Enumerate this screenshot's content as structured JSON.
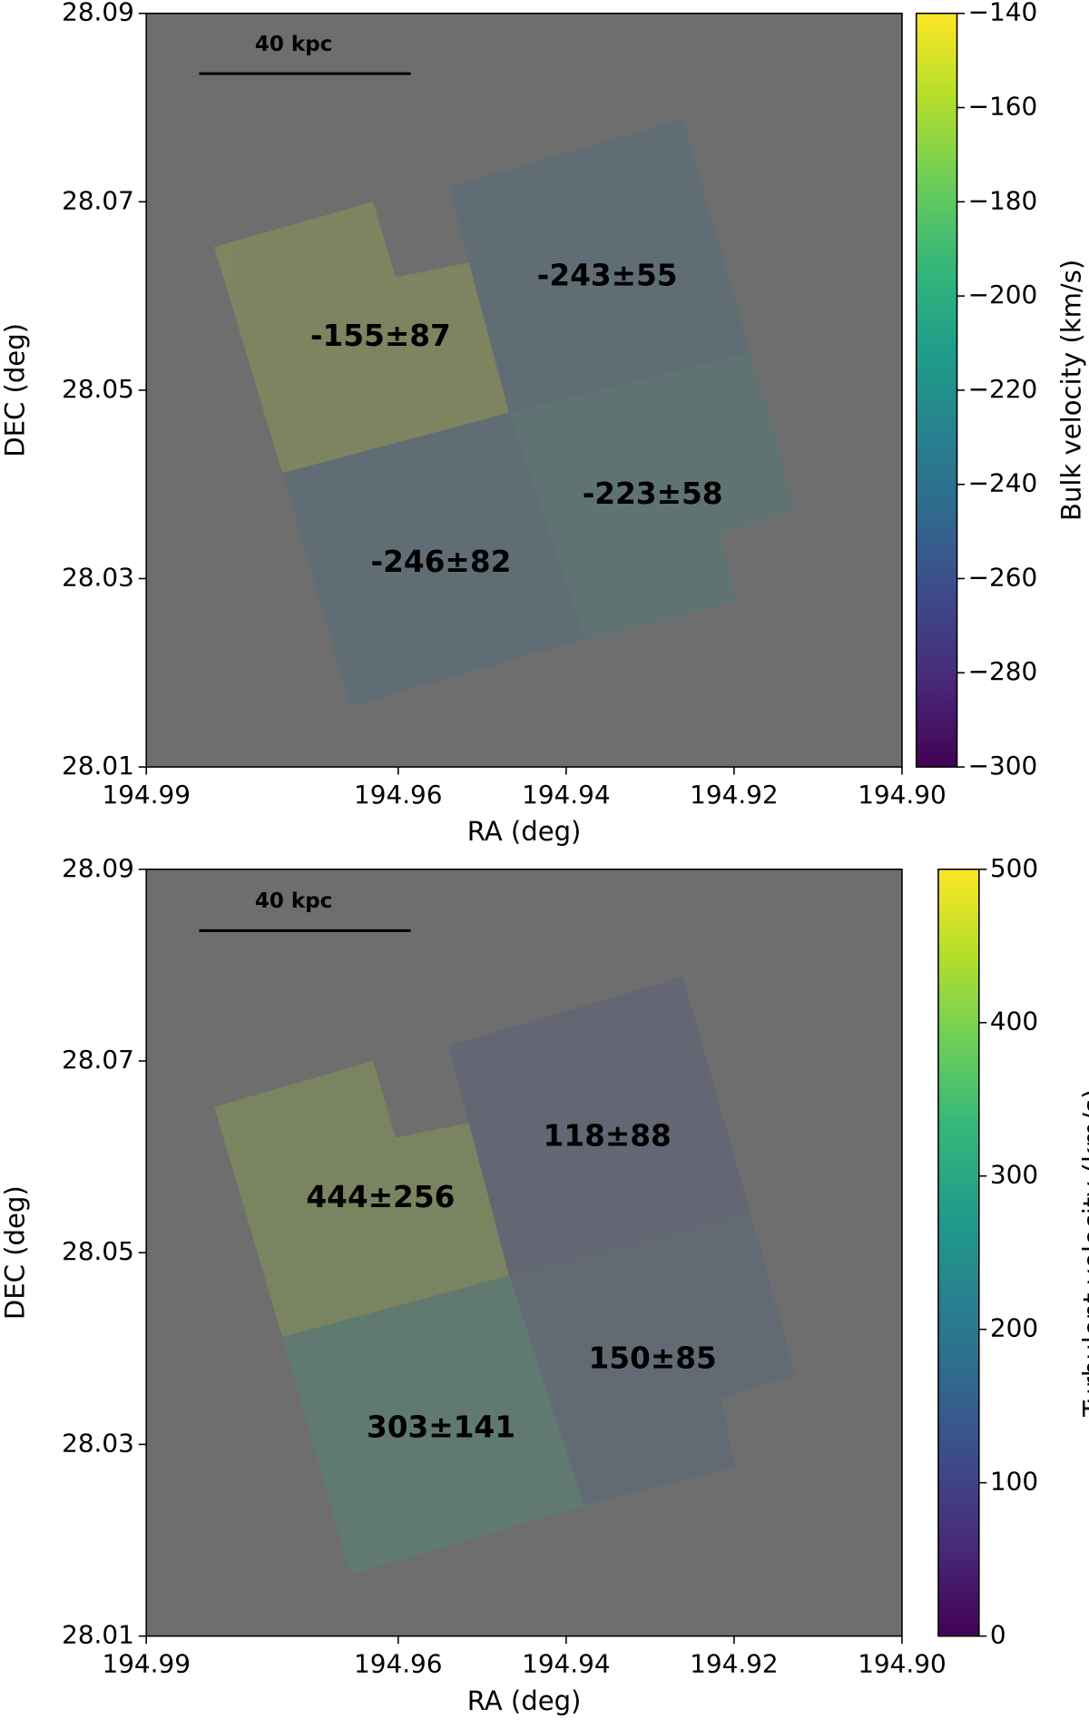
{
  "chart_data": [
    {
      "type": "region_map",
      "xlabel": "RA (deg)",
      "ylabel": "DEC (deg)",
      "xlim": [
        194.99,
        194.9
      ],
      "xticks": [
        194.99,
        194.96,
        194.94,
        194.92,
        {
          "value": 194.9,
          "label": "194.90"
        }
      ],
      "ylim": [
        28.01,
        28.09
      ],
      "yticks": [
        28.01,
        28.03,
        28.05,
        28.07,
        28.09
      ],
      "scale_bar_label": "40 kpc",
      "colormap": "viridis",
      "colorbar_label": "Bulk velocity (km/s)",
      "clim": [
        -300,
        -140
      ],
      "cticks": [
        {
          "value": -140,
          "label": "−140"
        },
        {
          "value": -160,
          "label": "−160"
        },
        {
          "value": -180,
          "label": "−180"
        },
        {
          "value": -200,
          "label": "−200"
        },
        {
          "value": -220,
          "label": "−220"
        },
        {
          "value": -240,
          "label": "−240"
        },
        {
          "value": -260,
          "label": "−260"
        },
        {
          "value": -280,
          "label": "−280"
        },
        {
          "value": -300,
          "label": "−300"
        }
      ],
      "regions": {
        "values": [
          -155,
          -243,
          -246,
          -223
        ],
        "errors": [
          87,
          55,
          82,
          58
        ],
        "value_labels": [
          "-155±87",
          "-243±55",
          "-246±82",
          "-223±58"
        ]
      }
    },
    {
      "type": "region_map",
      "xlabel": "RA (deg)",
      "ylabel": "DEC (deg)",
      "xlim": [
        194.99,
        194.9
      ],
      "xticks": [
        194.99,
        194.96,
        194.94,
        194.92,
        {
          "value": 194.9,
          "label": "194.90"
        }
      ],
      "ylim": [
        28.01,
        28.09
      ],
      "yticks": [
        28.01,
        28.03,
        28.05,
        28.07,
        28.09
      ],
      "scale_bar_label": "40 kpc",
      "colormap": "viridis",
      "colorbar_label": "Turbulent velocity (km/s)",
      "clim": [
        0,
        500
      ],
      "cticks": [
        0,
        100,
        200,
        300,
        400,
        500
      ],
      "regions": {
        "values": [
          444,
          118,
          303,
          150
        ],
        "errors": [
          256,
          88,
          141,
          85
        ],
        "value_labels": [
          "444±256",
          "118±88",
          "303±141",
          "150±85"
        ]
      }
    }
  ]
}
